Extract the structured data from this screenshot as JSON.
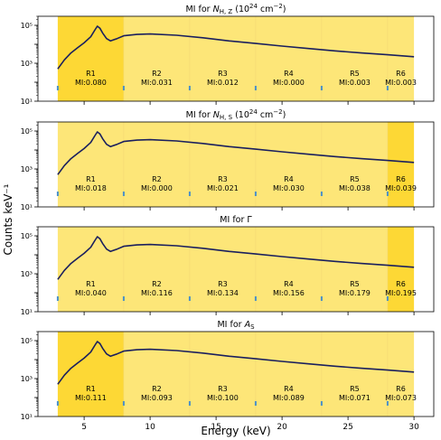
{
  "figure": {
    "ylabel": "Counts keV⁻¹",
    "xlabel": "Energy (keV)",
    "x_ticks": [
      "5",
      "10",
      "15",
      "20",
      "25",
      "30"
    ],
    "y_ticks": [
      "10¹",
      "10³",
      "10⁵"
    ],
    "colors": {
      "band_light": "#fde678",
      "band_highlight": "#fdd835",
      "spectrum_line": "#1a1f5e",
      "edge_marker": "#4a90c8",
      "axes": "#000000"
    }
  },
  "chart_data": [
    {
      "type": "line",
      "title": "MI for N_H,Z (10^24 cm^-2)",
      "title_parts": {
        "pre": "MI for ",
        "sym": "N",
        "sub": "H, Z",
        "post_pre": " (10",
        "sup": "24",
        "post_mid": " cm",
        "sup2": "−2",
        "post_end": ")"
      },
      "x_range": [
        1.5,
        31.5
      ],
      "y_log": true,
      "ylim": [
        10,
        300000.0
      ],
      "regions": [
        {
          "label": "R1",
          "mi": "MI:0.080",
          "x0": 3,
          "x1": 8,
          "highlight": true
        },
        {
          "label": "R2",
          "mi": "MI:0.031",
          "x0": 8,
          "x1": 13,
          "highlight": false
        },
        {
          "label": "R3",
          "mi": "MI:0.012",
          "x0": 13,
          "x1": 18,
          "highlight": false
        },
        {
          "label": "R4",
          "mi": "MI:0.000",
          "x0": 18,
          "x1": 23,
          "highlight": false
        },
        {
          "label": "R5",
          "mi": "MI:0.003",
          "x0": 23,
          "x1": 28,
          "highlight": false
        },
        {
          "label": "R6",
          "mi": "MI:0.003",
          "x0": 28,
          "x1": 30,
          "highlight": false
        }
      ]
    },
    {
      "type": "line",
      "title": "MI for N_H,S (10^24 cm^-2)",
      "title_parts": {
        "pre": "MI for ",
        "sym": "N",
        "sub": "H, S",
        "post_pre": " (10",
        "sup": "24",
        "post_mid": " cm",
        "sup2": "−2",
        "post_end": ")"
      },
      "x_range": [
        1.5,
        31.5
      ],
      "y_log": true,
      "ylim": [
        10,
        300000.0
      ],
      "regions": [
        {
          "label": "R1",
          "mi": "MI:0.018",
          "x0": 3,
          "x1": 8,
          "highlight": false
        },
        {
          "label": "R2",
          "mi": "MI:0.000",
          "x0": 8,
          "x1": 13,
          "highlight": false
        },
        {
          "label": "R3",
          "mi": "MI:0.021",
          "x0": 13,
          "x1": 18,
          "highlight": false
        },
        {
          "label": "R4",
          "mi": "MI:0.030",
          "x0": 18,
          "x1": 23,
          "highlight": false
        },
        {
          "label": "R5",
          "mi": "MI:0.038",
          "x0": 23,
          "x1": 28,
          "highlight": false
        },
        {
          "label": "R6",
          "mi": "MI:0.039",
          "x0": 28,
          "x1": 30,
          "highlight": true
        }
      ]
    },
    {
      "type": "line",
      "title": "MI for Γ",
      "title_parts": {
        "pre": "MI for Γ"
      },
      "x_range": [
        1.5,
        31.5
      ],
      "y_log": true,
      "ylim": [
        10,
        300000.0
      ],
      "regions": [
        {
          "label": "R1",
          "mi": "MI:0.040",
          "x0": 3,
          "x1": 8,
          "highlight": false
        },
        {
          "label": "R2",
          "mi": "MI:0.116",
          "x0": 8,
          "x1": 13,
          "highlight": false
        },
        {
          "label": "R3",
          "mi": "MI:0.134",
          "x0": 13,
          "x1": 18,
          "highlight": false
        },
        {
          "label": "R4",
          "mi": "MI:0.156",
          "x0": 18,
          "x1": 23,
          "highlight": false
        },
        {
          "label": "R5",
          "mi": "MI:0.179",
          "x0": 23,
          "x1": 28,
          "highlight": false
        },
        {
          "label": "R6",
          "mi": "MI:0.195",
          "x0": 28,
          "x1": 30,
          "highlight": true
        }
      ]
    },
    {
      "type": "line",
      "title": "MI for A_S",
      "title_parts": {
        "pre": "MI for ",
        "sym": "A",
        "sub": "S"
      },
      "x_range": [
        1.5,
        31.5
      ],
      "y_log": true,
      "ylim": [
        10,
        300000.0
      ],
      "regions": [
        {
          "label": "R1",
          "mi": "MI:0.111",
          "x0": 3,
          "x1": 8,
          "highlight": true
        },
        {
          "label": "R2",
          "mi": "MI:0.093",
          "x0": 8,
          "x1": 13,
          "highlight": false
        },
        {
          "label": "R3",
          "mi": "MI:0.100",
          "x0": 13,
          "x1": 18,
          "highlight": false
        },
        {
          "label": "R4",
          "mi": "MI:0.089",
          "x0": 18,
          "x1": 23,
          "highlight": false
        },
        {
          "label": "R5",
          "mi": "MI:0.071",
          "x0": 23,
          "x1": 28,
          "highlight": false
        },
        {
          "label": "R6",
          "mi": "MI:0.073",
          "x0": 28,
          "x1": 30,
          "highlight": false
        }
      ]
    }
  ],
  "spectrum": {
    "x": [
      3.0,
      3.5,
      4.0,
      4.5,
      5.0,
      5.5,
      5.8,
      6.0,
      6.2,
      6.4,
      6.7,
      7.0,
      7.5,
      8.0,
      9.0,
      10.0,
      12.0,
      14.0,
      16.0,
      18.0,
      20.0,
      22.0,
      24.0,
      26.0,
      28.0,
      30.0
    ],
    "y": [
      500,
      1500,
      3500,
      6500,
      12000,
      25000,
      55000,
      90000,
      70000,
      40000,
      20000,
      15000,
      20000,
      28000,
      33000,
      35000,
      30000,
      22000,
      15000,
      11000,
      8000,
      6000,
      4500,
      3500,
      2800,
      2200
    ]
  }
}
